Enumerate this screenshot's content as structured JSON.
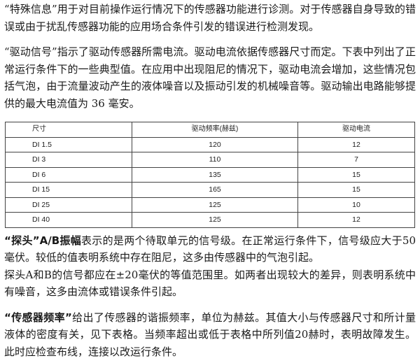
{
  "para1": "“特殊信息”用于对目前操作运行情况下的传感器功能进行诊测。对于传感器自身导致的错误或由于扰乱传感器功能的应用场合条件引发的错误进行检测发现。",
  "para2": "“驱动信号”指示了驱动传感器所需电流。驱动电流依据传感器尺寸而定。下表中列出了正常运行条件下的一些典型值。在应用中出现阻尼的情况下，驱动电流会增加，这些情况包括气泡，由于流量波动产生的液体噪音以及振动引发的机械噪音等。驱动输出电路能够提供的最大电流值为 36 毫安。",
  "table": {
    "headers": [
      "尺寸",
      "驱动频率(赫兹)",
      "驱动电流"
    ],
    "rows": [
      [
        "DI 1.5",
        "120",
        "12"
      ],
      [
        "DI 3",
        "110",
        "7"
      ],
      [
        "DI 6",
        "135",
        "15"
      ],
      [
        "DI 15",
        "165",
        "15"
      ],
      [
        "DI 25",
        "125",
        "10"
      ],
      [
        "DI 40",
        "125",
        "12"
      ]
    ]
  },
  "para3": {
    "term": "“探头”A/B振幅",
    "text": "表示的是两个待取单元的信号级。在正常运行条件下，信号级应大于50毫伏。较低的值表明系统中存在阻尼，这多由传感器中的气泡引起。",
    "text2": "探头A和B的信号都应在±20毫伏的等值范围里。如两者出现较大的差异，则表明系统中有噪音，这多由流体或错误条件引起。"
  },
  "para4": {
    "term": "“传感器频率”",
    "text": "给出了传感器的谐振频率，单位为赫兹。其值大小与传感器尺寸和所计量液体的密度有关，见下表格。当频率超出或低于表格中所列值20赫时，表明故障发生。此时应检查布线，连接以改运行条件。"
  }
}
